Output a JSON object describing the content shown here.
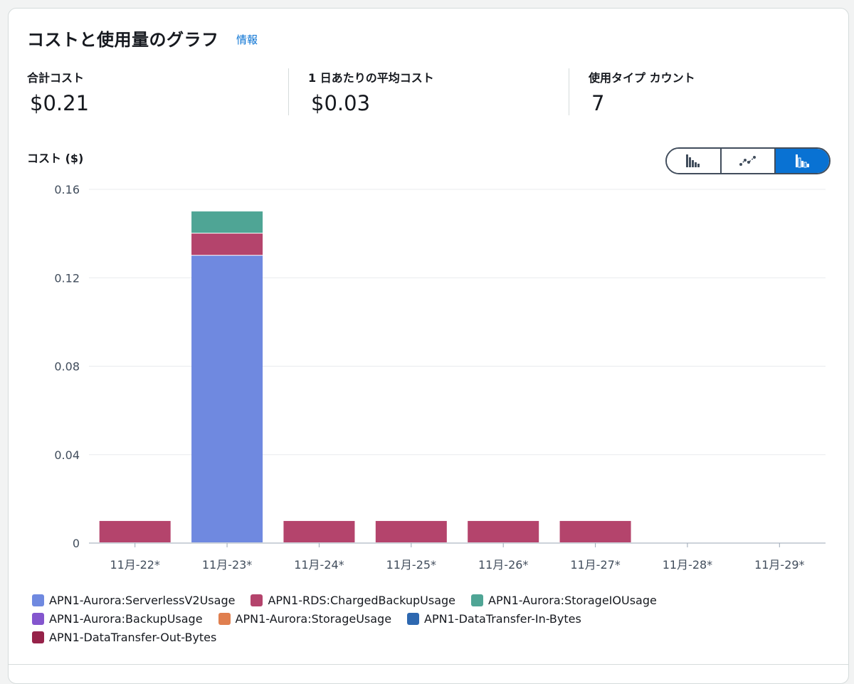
{
  "header": {
    "title": "コストと使用量のグラフ",
    "info_link": "情報"
  },
  "metrics": [
    {
      "label": "合計コスト",
      "value": "$0.21"
    },
    {
      "label": "1 日あたりの平均コスト",
      "value": "$0.03"
    },
    {
      "label": "使用タイプ カウント",
      "value": "7"
    }
  ],
  "chart_toggle": {
    "options": [
      "bar-chart-icon",
      "line-chart-icon",
      "stacked-bar-chart-icon"
    ],
    "active": "stacked-bar-chart-icon",
    "active_color": "#0972d3"
  },
  "chart_data": {
    "type": "bar",
    "stacked": true,
    "ylabel": "コスト ($)",
    "ylim": [
      0,
      0.16
    ],
    "yticks": [
      "0",
      "0.04",
      "0.08",
      "0.12",
      "0.16"
    ],
    "grid": true,
    "categories": [
      "11月-22*",
      "11月-23*",
      "11月-24*",
      "11月-25*",
      "11月-26*",
      "11月-27*",
      "11月-28*",
      "11月-29*"
    ],
    "series": [
      {
        "name": "APN1-Aurora:ServerlessV2Usage",
        "color": "#6f89e0",
        "values": [
          0,
          0.13,
          0,
          0,
          0,
          0,
          0,
          0
        ]
      },
      {
        "name": "APN1-RDS:ChargedBackupUsage",
        "color": "#b4446c",
        "values": [
          0.01,
          0.01,
          0.01,
          0.01,
          0.01,
          0.01,
          0,
          0
        ]
      },
      {
        "name": "APN1-Aurora:StorageIOUsage",
        "color": "#4fa595",
        "values": [
          0,
          0.01,
          0,
          0,
          0,
          0,
          0,
          0
        ]
      },
      {
        "name": "APN1-Aurora:BackupUsage",
        "color": "#8456ce",
        "values": [
          0,
          0,
          0,
          0,
          0,
          0,
          0,
          0
        ]
      },
      {
        "name": "APN1-Aurora:StorageUsage",
        "color": "#e07f4f",
        "values": [
          0,
          0,
          0,
          0,
          0,
          0,
          0,
          0
        ]
      },
      {
        "name": "APN1-DataTransfer-In-Bytes",
        "color": "#2e68b0",
        "values": [
          0,
          0,
          0,
          0,
          0,
          0,
          0,
          0
        ]
      },
      {
        "name": "APN1-DataTransfer-Out-Bytes",
        "color": "#962249",
        "values": [
          0,
          0,
          0,
          0,
          0,
          0,
          0,
          0
        ]
      }
    ],
    "legend_rows": [
      [
        0,
        1,
        2
      ],
      [
        3,
        4,
        5
      ],
      [
        6
      ]
    ]
  }
}
